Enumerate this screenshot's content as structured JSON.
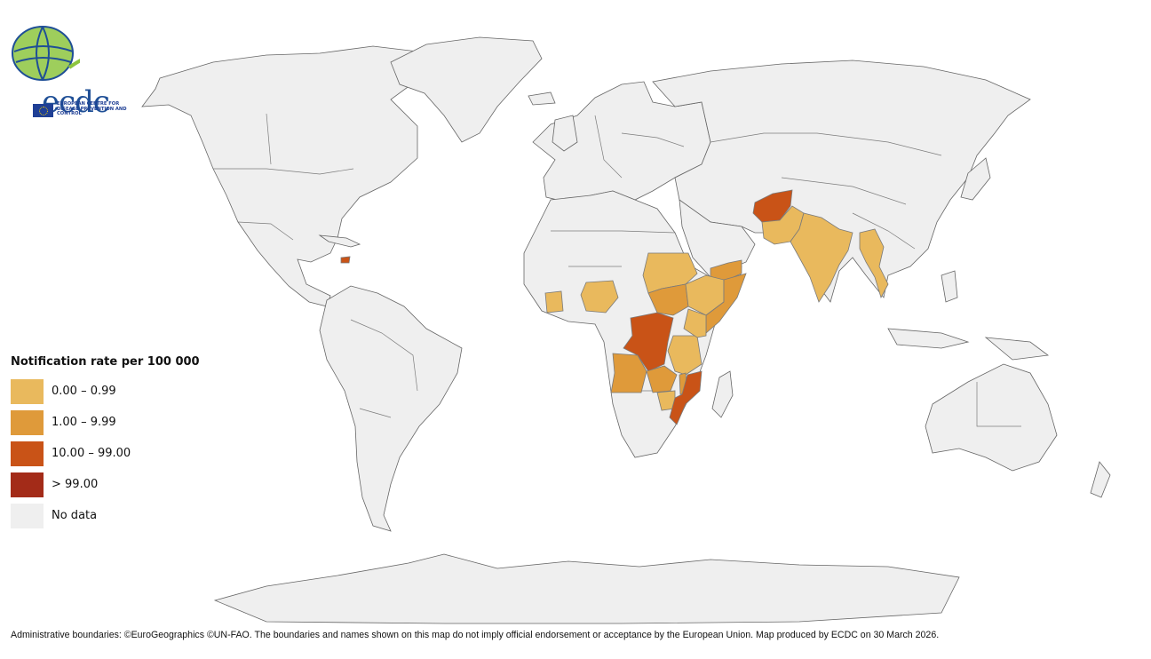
{
  "legend": {
    "title": "Notification rate per 100 000",
    "items": [
      {
        "label": "0.00 – 0.99",
        "color": "#e9b95d"
      },
      {
        "label": "1.00 – 9.99",
        "color": "#df9a3a"
      },
      {
        "label": "10.00 – 99.00",
        "color": "#c95317"
      },
      {
        "label": "> 99.00",
        "color": "#a32b18"
      },
      {
        "label": "No data",
        "color": "#efefef"
      }
    ]
  },
  "logo": {
    "name": "ecdc",
    "subtitle": "EUROPEAN CENTRE FOR DISEASE PREVENTION AND CONTROL"
  },
  "footer": {
    "text": "Administrative boundaries: ©EuroGeographics ©UN-FAO. The boundaries and names shown on this map do not imply official endorsement or acceptance by the European Union. Map produced by ECDC on 30 March 2026."
  },
  "map_data": {
    "no_data_color": "#efefef",
    "countries": [
      {
        "name": "Afghanistan",
        "class": "10.00 – 99.00"
      },
      {
        "name": "Pakistan",
        "class": "0.00 – 0.99"
      },
      {
        "name": "India",
        "class": "0.00 – 0.99"
      },
      {
        "name": "Myanmar",
        "class": "0.00 – 0.99"
      },
      {
        "name": "Haiti",
        "class": "10.00 – 99.00"
      },
      {
        "name": "Yemen",
        "class": "1.00 – 9.99"
      },
      {
        "name": "Sudan",
        "class": "0.00 – 0.99"
      },
      {
        "name": "South Sudan",
        "class": "1.00 – 9.99"
      },
      {
        "name": "Ethiopia",
        "class": "0.00 – 0.99"
      },
      {
        "name": "Somalia",
        "class": "1.00 – 9.99"
      },
      {
        "name": "Nigeria",
        "class": "0.00 – 0.99"
      },
      {
        "name": "Côte d'Ivoire",
        "class": "0.00 – 0.99"
      },
      {
        "name": "Democratic Republic of the Congo",
        "class": "10.00 – 99.00"
      },
      {
        "name": "Angola",
        "class": "1.00 – 9.99"
      },
      {
        "name": "Zambia",
        "class": "1.00 – 9.99"
      },
      {
        "name": "Tanzania",
        "class": "0.00 – 0.99"
      },
      {
        "name": "Kenya",
        "class": "0.00 – 0.99"
      },
      {
        "name": "Malawi",
        "class": "1.00 – 9.99"
      },
      {
        "name": "Zimbabwe",
        "class": "0.00 – 0.99"
      },
      {
        "name": "Mozambique",
        "class": "10.00 – 99.00"
      }
    ]
  }
}
